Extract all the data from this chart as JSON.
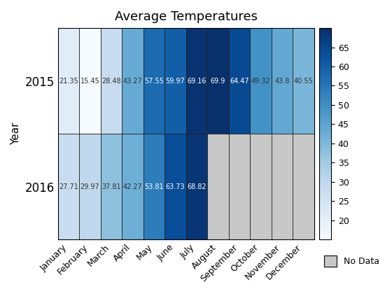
{
  "title": "Average Temperatures",
  "ylabel": "Year",
  "months": [
    "January",
    "February",
    "March",
    "April",
    "May",
    "June",
    "July",
    "August",
    "September",
    "October",
    "November",
    "December"
  ],
  "years": [
    "2015",
    "2016"
  ],
  "values": [
    [
      21.35,
      15.45,
      28.48,
      43.27,
      57.55,
      59.97,
      69.16,
      69.9,
      64.47,
      49.32,
      43.8,
      40.55
    ],
    [
      27.71,
      29.97,
      37.81,
      42.27,
      53.81,
      63.73,
      68.82,
      null,
      null,
      null,
      null,
      null
    ]
  ],
  "vmin": 15,
  "vmax": 70,
  "colorbar_ticks": [
    20,
    25,
    30,
    35,
    40,
    45,
    50,
    55,
    60,
    65
  ],
  "no_data_color": "#c8c8c8",
  "grid_color": "#222222",
  "text_threshold": 50,
  "figsize": [
    5.6,
    4.2
  ],
  "dpi": 100
}
